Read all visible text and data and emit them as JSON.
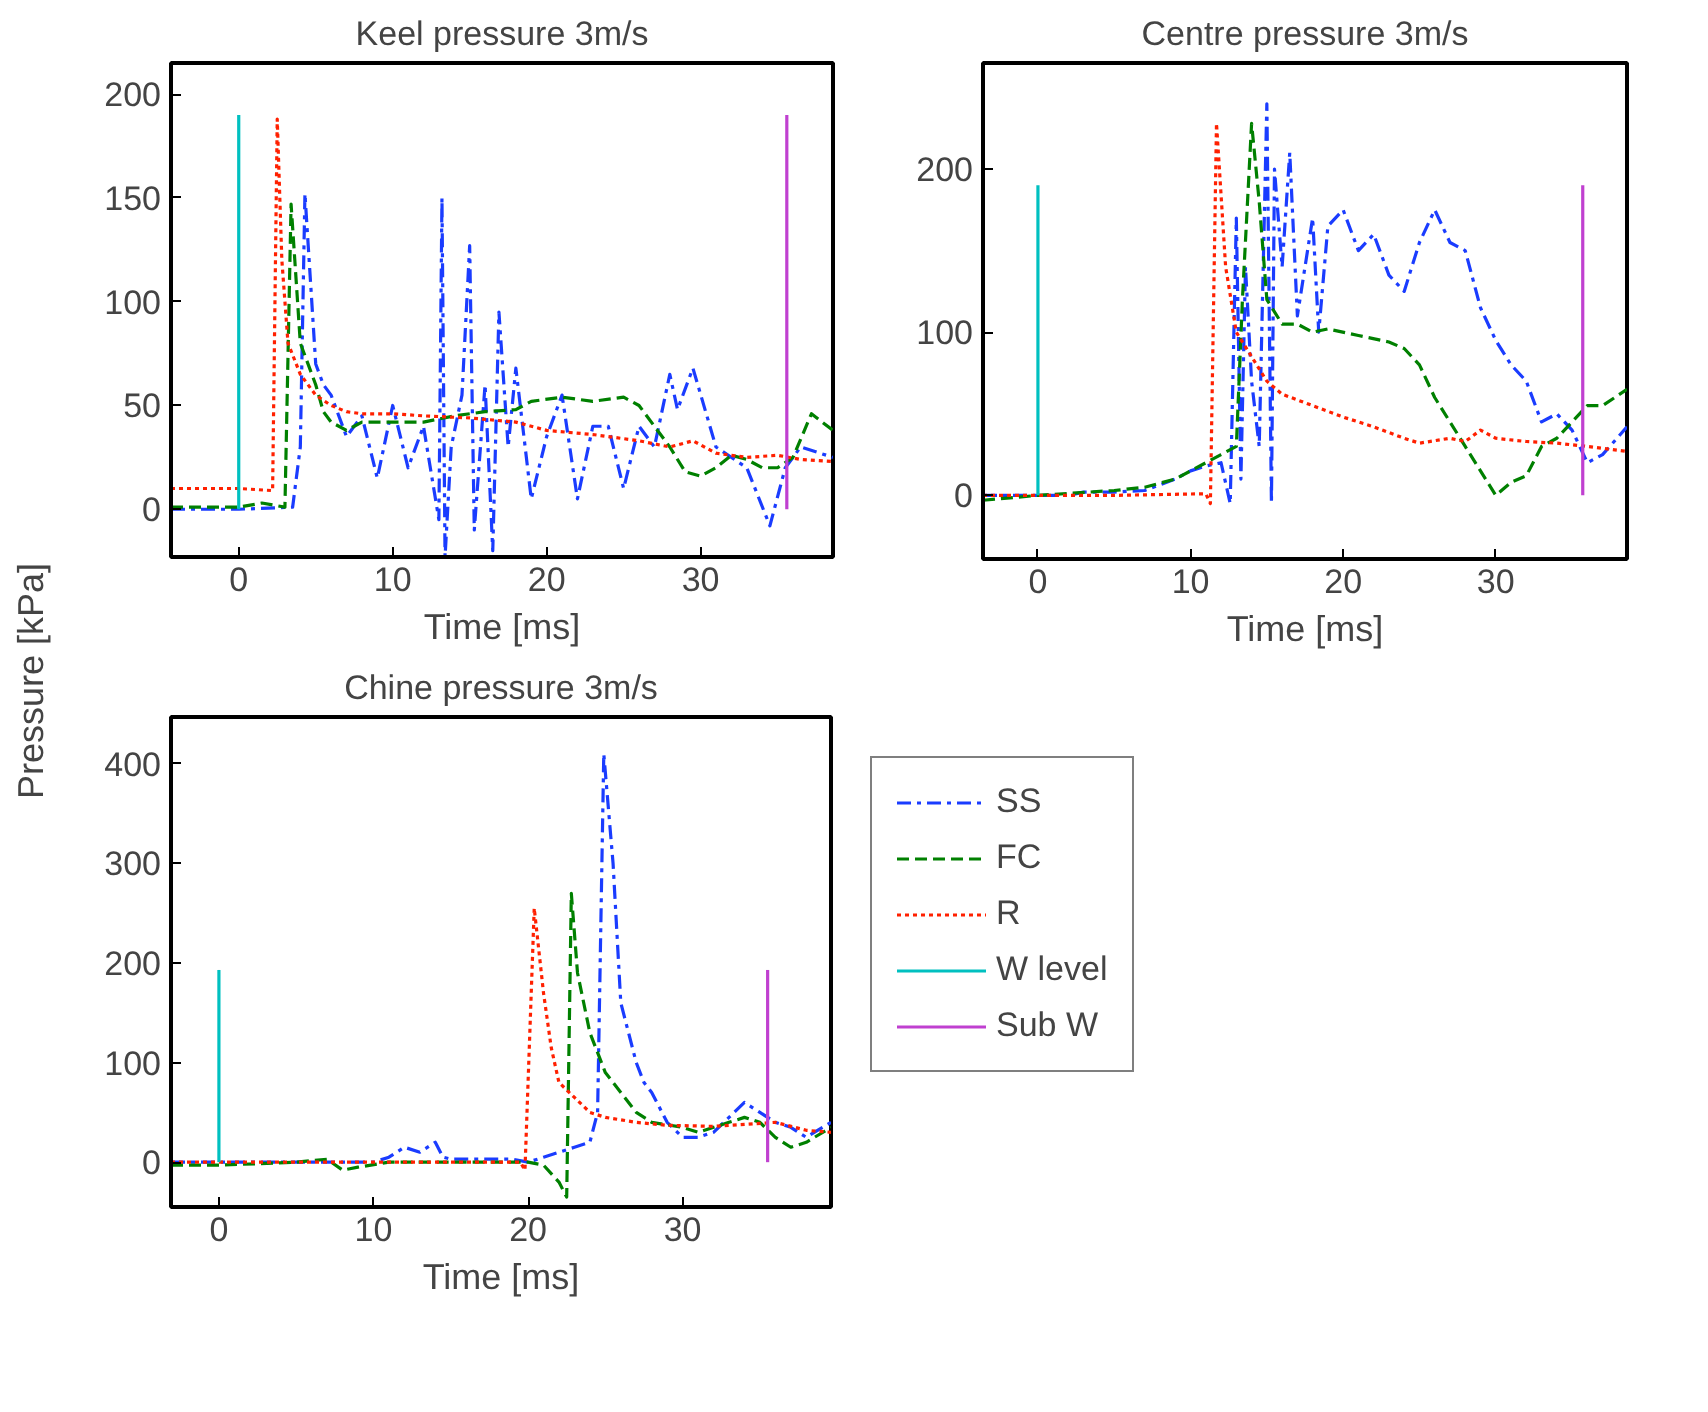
{
  "chart_data": [
    {
      "type": "line",
      "title": "Keel pressure 3m/s",
      "xlabel": "Time [ms]",
      "ylabel": "Pressure [kPa]",
      "xlim": [
        -4.4,
        38.6
      ],
      "ylim": [
        -23,
        215
      ],
      "xticks": [
        0,
        10,
        20,
        30
      ],
      "yticks": [
        0,
        50,
        100,
        150,
        200
      ],
      "series": [
        {
          "color": "#1a3cff",
          "line_style": "dashdot",
          "x": [
            -4.4,
            0,
            3.5,
            4.0,
            4.3,
            5,
            5.5,
            6,
            7,
            8,
            9,
            10,
            11,
            12,
            13,
            13.2,
            13.4,
            13.8,
            14.5,
            15,
            15.3,
            16,
            16.5,
            16.9,
            17.5,
            18,
            19,
            20,
            21,
            22,
            23,
            24,
            25,
            26,
            27,
            28,
            28.5,
            29.5,
            31,
            33,
            34.5,
            35.5,
            36.5,
            38.6
          ],
          "values": [
            0,
            0,
            1,
            30,
            152,
            70,
            60,
            55,
            35,
            45,
            15,
            50,
            20,
            40,
            -5,
            150,
            -23,
            30,
            55,
            127,
            -10,
            60,
            -20,
            95,
            30,
            68,
            5,
            35,
            55,
            5,
            40,
            40,
            10,
            40,
            30,
            65,
            48,
            68,
            30,
            20,
            -8,
            20,
            30,
            25
          ]
        },
        {
          "color": "#008000",
          "line_style": "dashed",
          "x": [
            -4.4,
            0,
            1.5,
            3.0,
            3.4,
            4,
            5,
            5.5,
            6,
            7,
            8,
            10,
            12,
            14,
            16,
            18,
            19,
            21,
            23,
            25,
            26,
            27,
            28,
            29,
            30,
            31,
            32,
            33,
            34,
            35,
            36,
            37.2,
            38.6
          ],
          "values": [
            1,
            1,
            3,
            1,
            147,
            80,
            60,
            47,
            42,
            38,
            42,
            42,
            42,
            45,
            47,
            48,
            52,
            54,
            52,
            54,
            50,
            40,
            30,
            18,
            16,
            20,
            26,
            24,
            20,
            20,
            25,
            46,
            38
          ]
        },
        {
          "color": "#ff2000",
          "line_style": "dotted",
          "x": [
            -4.4,
            -2,
            0,
            2.2,
            2.5,
            2.8,
            3.2,
            4,
            5,
            6,
            7,
            8,
            10,
            12,
            15,
            18,
            20,
            23,
            26,
            28,
            29.5,
            31,
            33,
            35,
            36.5,
            38.6
          ],
          "values": [
            10,
            10,
            10,
            9,
            188,
            120,
            80,
            65,
            55,
            50,
            47,
            46,
            46,
            45,
            44,
            42,
            38,
            36,
            33,
            30,
            33,
            27,
            25,
            26,
            24,
            23
          ]
        },
        {
          "color": "#00c0c0",
          "line_style": "solid",
          "x": [
            0,
            0
          ],
          "values": [
            0,
            190
          ]
        },
        {
          "color": "#c040d0",
          "line_style": "solid",
          "x": [
            35.6,
            35.6
          ],
          "values": [
            0,
            190
          ]
        }
      ]
    },
    {
      "type": "line",
      "title": "Centre pressure 3m/s",
      "xlabel": "Time [ms]",
      "xlim": [
        -3.6,
        38.6
      ],
      "ylim": [
        -39,
        265
      ],
      "xticks": [
        0,
        10,
        20,
        30
      ],
      "yticks": [
        0,
        100,
        200
      ],
      "series": [
        {
          "color": "#1a3cff",
          "line_style": "dashdot",
          "x": [
            -3.6,
            0,
            2,
            3,
            5,
            7,
            9,
            10,
            11,
            12,
            12.6,
            13,
            13.3,
            13.6,
            14,
            14.5,
            15,
            15.3,
            15.5,
            16,
            16.5,
            17,
            18,
            18.4,
            19,
            20,
            21,
            22,
            23,
            24,
            25,
            26,
            27,
            28,
            29,
            30,
            31,
            32,
            33,
            34,
            35,
            36,
            37,
            38.6
          ],
          "values": [
            0,
            0,
            0,
            2,
            2,
            3,
            10,
            15,
            18,
            20,
            -5,
            170,
            10,
            140,
            70,
            30,
            240,
            -5,
            200,
            140,
            210,
            110,
            170,
            100,
            165,
            175,
            150,
            160,
            135,
            125,
            155,
            175,
            155,
            150,
            115,
            95,
            80,
            70,
            45,
            50,
            40,
            20,
            25,
            42
          ]
        },
        {
          "color": "#008000",
          "line_style": "dashed",
          "x": [
            -3.6,
            0,
            5,
            7,
            9,
            10,
            11,
            12,
            13,
            13.4,
            14,
            14.5,
            15,
            16,
            17,
            18,
            19,
            21,
            23,
            24,
            25,
            26,
            27,
            28,
            29,
            30,
            31,
            32,
            33,
            34,
            35,
            36,
            37,
            38.6
          ],
          "values": [
            -3,
            0,
            3,
            5,
            10,
            15,
            20,
            25,
            30,
            120,
            228,
            180,
            120,
            105,
            105,
            100,
            102,
            98,
            94,
            90,
            80,
            60,
            45,
            30,
            15,
            0,
            8,
            12,
            30,
            35,
            45,
            55,
            55,
            65
          ]
        },
        {
          "color": "#ff2000",
          "line_style": "dotted",
          "x": [
            -3.6,
            0,
            5,
            11,
            11.3,
            11.7,
            12.3,
            13,
            14,
            15,
            16,
            18,
            20,
            22,
            24,
            25,
            27,
            28,
            29,
            30,
            32,
            34,
            36,
            38.6
          ],
          "values": [
            0,
            0,
            0,
            1,
            -5,
            228,
            140,
            100,
            85,
            70,
            62,
            55,
            48,
            42,
            35,
            32,
            35,
            33,
            40,
            35,
            33,
            32,
            30,
            27
          ]
        },
        {
          "color": "#00c0c0",
          "line_style": "solid",
          "x": [
            0,
            0
          ],
          "values": [
            0,
            190
          ]
        },
        {
          "color": "#c040d0",
          "line_style": "solid",
          "x": [
            35.7,
            35.7
          ],
          "values": [
            0,
            190
          ]
        }
      ]
    },
    {
      "type": "line",
      "title": "Chine pressure 3m/s",
      "xlabel": "Time [ms]",
      "xlim": [
        -3.1,
        39.6
      ],
      "ylim": [
        -45,
        447
      ],
      "xticks": [
        0,
        10,
        20,
        30
      ],
      "yticks": [
        0,
        100,
        200,
        300,
        400
      ],
      "legend": "right",
      "series": [
        {
          "name": "SS",
          "color": "#1a3cff",
          "line_style": "dashdot",
          "x": [
            -3.1,
            0,
            10,
            11,
            12,
            13,
            14,
            14.5,
            15,
            17,
            19,
            20,
            21,
            22,
            23,
            24,
            24.5,
            24.9,
            25.5,
            26,
            27,
            27.5,
            28,
            29,
            30,
            31,
            32,
            33,
            34,
            35,
            36,
            37,
            38,
            39.6
          ],
          "values": [
            0,
            0,
            0,
            5,
            15,
            10,
            20,
            5,
            3,
            3,
            3,
            0,
            5,
            10,
            15,
            20,
            50,
            410,
            300,
            160,
            100,
            80,
            70,
            40,
            25,
            25,
            30,
            45,
            60,
            50,
            40,
            35,
            25,
            40
          ]
        },
        {
          "name": "FC",
          "color": "#008000",
          "line_style": "dashed",
          "x": [
            -3.1,
            0,
            5,
            7,
            8,
            9,
            11,
            20,
            21,
            22,
            22.5,
            22.8,
            23.2,
            24,
            25,
            26,
            27,
            28,
            30,
            31,
            33,
            34,
            35,
            36,
            37,
            38,
            39.6
          ],
          "values": [
            -3,
            -3,
            0,
            3,
            -8,
            -5,
            0,
            0,
            -3,
            -20,
            -35,
            270,
            190,
            130,
            90,
            70,
            50,
            40,
            35,
            30,
            40,
            45,
            40,
            25,
            15,
            20,
            35
          ]
        },
        {
          "name": "R",
          "color": "#ff2000",
          "line_style": "dotted",
          "x": [
            -3.1,
            0,
            10,
            19.5,
            19.8,
            20.4,
            21,
            21.5,
            22,
            23,
            24,
            25,
            27,
            29,
            32,
            34,
            36,
            38,
            39.6
          ],
          "values": [
            0,
            0,
            0,
            0,
            -8,
            255,
            170,
            115,
            80,
            65,
            50,
            45,
            40,
            37,
            36,
            38,
            40,
            32,
            30
          ]
        },
        {
          "name": "W level",
          "color": "#00c0c0",
          "line_style": "solid",
          "x": [
            0,
            0
          ],
          "values": [
            0,
            193
          ]
        },
        {
          "name": "Sub W",
          "color": "#c040d0",
          "line_style": "solid",
          "x": [
            35.5,
            35.5
          ],
          "values": [
            0,
            193
          ]
        }
      ]
    }
  ]
}
